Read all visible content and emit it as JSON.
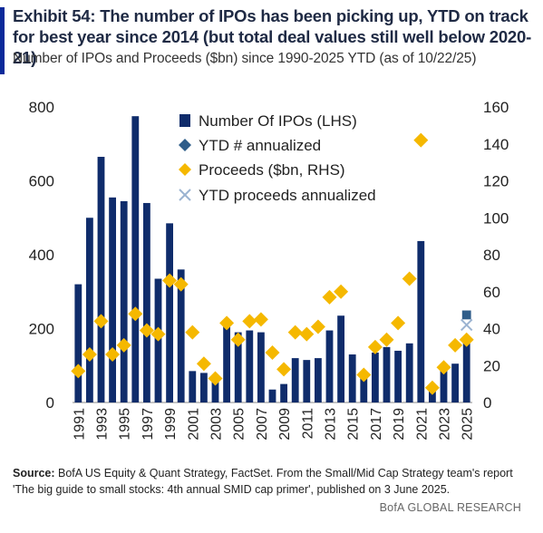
{
  "header": {
    "title": "Exhibit 54: The number of IPOs has been picking up, YTD on track for best year since 2014 (but total deal values still well below 2020-21)",
    "subtitle": "Number of IPOs and Proceeds ($bn) since 1990-2025 YTD (as of 10/22/25)"
  },
  "source": {
    "label": "Source:",
    "text": " BofA US Equity & Quant Strategy, FactSet. From the Small/Mid Cap Strategy team's report 'The big guide to small stocks: 4th annual SMID cap primer', published on 3 June 2025."
  },
  "footer": {
    "brand": "BofA GLOBAL RESEARCH"
  },
  "colors": {
    "accent": "#0a2a9a",
    "bar": "#0f2c6b",
    "proceeds": "#f5b800",
    "ytd_annualized": "#2f5d8a",
    "ytd_proceeds_annualized": "#9bb3d1"
  },
  "chart_data": {
    "type": "bar",
    "x": [
      1991,
      1992,
      1993,
      1994,
      1995,
      1996,
      1997,
      1998,
      1999,
      2000,
      2001,
      2002,
      2003,
      2004,
      2005,
      2006,
      2007,
      2008,
      2009,
      2010,
      2011,
      2012,
      2013,
      2014,
      2015,
      2016,
      2017,
      2018,
      2019,
      2020,
      2021,
      2022,
      2023,
      2024,
      2025
    ],
    "x_tick_labels": [
      "1991",
      "1993",
      "1995",
      "1997",
      "1999",
      "2001",
      "2003",
      "2005",
      "2007",
      "2009",
      "2011",
      "2013",
      "2015",
      "2017",
      "2019",
      "2021",
      "2023",
      "2025"
    ],
    "series": [
      {
        "name": "Number Of IPOs (LHS)",
        "type": "bar",
        "axis": "left",
        "values": [
          320,
          500,
          665,
          555,
          545,
          775,
          540,
          335,
          485,
          360,
          85,
          80,
          70,
          210,
          190,
          195,
          190,
          35,
          50,
          120,
          115,
          120,
          195,
          235,
          130,
          75,
          135,
          150,
          140,
          160,
          437,
          30,
          105,
          105,
          175
        ]
      },
      {
        "name": "YTD # annualized",
        "type": "marker",
        "marker": "diamond",
        "axis": "left",
        "points": [
          {
            "x": 2025,
            "y": 237
          }
        ]
      },
      {
        "name": "Proceeds ($bn, RHS)",
        "type": "scatter",
        "marker": "diamond",
        "axis": "right",
        "values": [
          17,
          26,
          44,
          26,
          31,
          48,
          39,
          37,
          66,
          64,
          38,
          21,
          13,
          43,
          34,
          44,
          45,
          27,
          18,
          38,
          37,
          41,
          57,
          60,
          null,
          15,
          30,
          34,
          43,
          67,
          142,
          8,
          19,
          31,
          34
        ]
      },
      {
        "name": "YTD proceeds annualized",
        "type": "marker",
        "marker": "x",
        "axis": "right",
        "points": [
          {
            "x": 2025,
            "y": 42
          }
        ]
      }
    ],
    "y_left": {
      "ticks": [
        "0",
        "200",
        "400",
        "600",
        "800"
      ],
      "lim": [
        0,
        800
      ]
    },
    "y_right": {
      "ticks": [
        "0",
        "20",
        "40",
        "60",
        "80",
        "100",
        "120",
        "140",
        "160"
      ],
      "lim": [
        0,
        160
      ]
    },
    "legend": {
      "placement": "top-center"
    },
    "grid": false
  }
}
